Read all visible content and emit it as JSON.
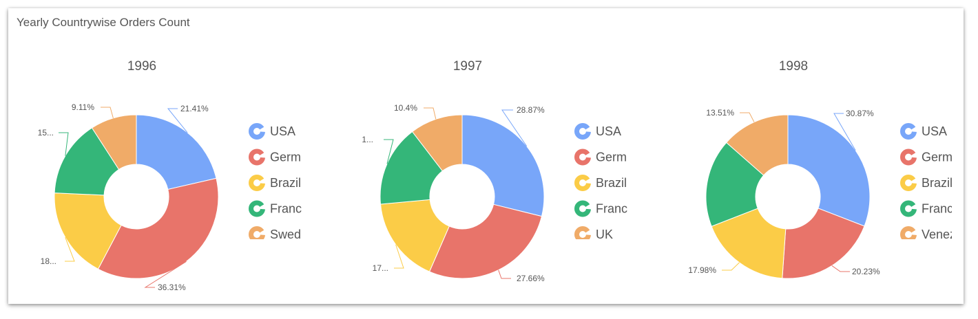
{
  "widget": {
    "title": "Yearly Countrywise Orders Count"
  },
  "colors": {
    "USA": "#78a6f9",
    "Germ": "#e8746a",
    "Brazil": "#fbcc47",
    "Franc": "#34b679",
    "Swed": "#f0ab68",
    "UK": "#f0ab68",
    "Venez": "#f0ab68"
  },
  "chart_data": [
    {
      "type": "pie",
      "title": "1996",
      "legend": [
        "USA",
        "Germ",
        "Brazil",
        "Franc",
        "Swed"
      ],
      "slices": [
        {
          "name": "USA",
          "value": 21.41,
          "label": "21.41%"
        },
        {
          "name": "Germ",
          "value": 36.31,
          "label": "36.31%"
        },
        {
          "name": "Brazil",
          "value": 18.0,
          "label": "18..."
        },
        {
          "name": "Franc",
          "value": 15.17,
          "label": "15..."
        },
        {
          "name": "Swed",
          "value": 9.11,
          "label": "9.11%"
        }
      ]
    },
    {
      "type": "pie",
      "title": "1997",
      "legend": [
        "USA",
        "Germ",
        "Brazil",
        "Franc",
        "UK"
      ],
      "slices": [
        {
          "name": "USA",
          "value": 28.87,
          "label": "28.87%"
        },
        {
          "name": "Germ",
          "value": 27.66,
          "label": "27.66%"
        },
        {
          "name": "Brazil",
          "value": 17.0,
          "label": "17..."
        },
        {
          "name": "Franc",
          "value": 16.07,
          "label": "1..."
        },
        {
          "name": "UK",
          "value": 10.4,
          "label": "10.4%"
        }
      ]
    },
    {
      "type": "pie",
      "title": "1998",
      "legend": [
        "USA",
        "Germ",
        "Brazil",
        "Franc",
        "Venez"
      ],
      "slices": [
        {
          "name": "USA",
          "value": 30.87,
          "label": "30.87%"
        },
        {
          "name": "Germ",
          "value": 20.23,
          "label": "20.23%"
        },
        {
          "name": "Brazil",
          "value": 17.98,
          "label": "17.98%"
        },
        {
          "name": "Franc",
          "value": 17.41,
          "label": ""
        },
        {
          "name": "Venez",
          "value": 13.51,
          "label": "13.51%"
        }
      ]
    }
  ]
}
